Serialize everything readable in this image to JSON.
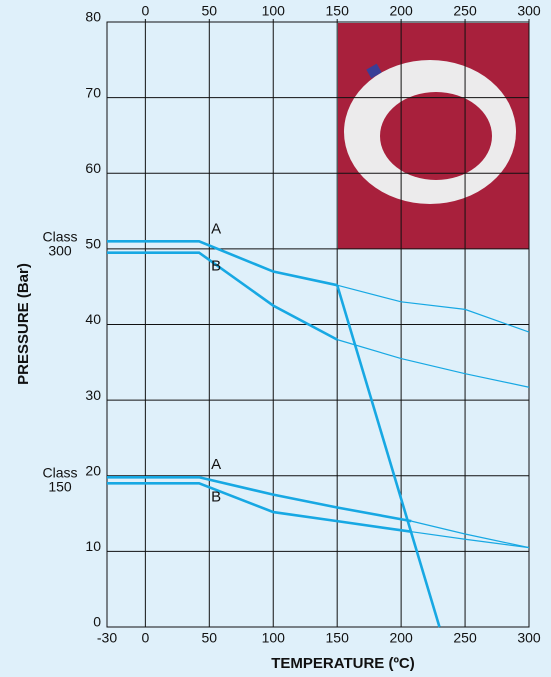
{
  "chart_data": {
    "type": "line",
    "x_label": "TEMPERATURE (ºC)",
    "y_label": "PRESSURE (Bar)",
    "xlim": [
      -30,
      300
    ],
    "ylim": [
      0,
      80
    ],
    "xticks": [
      -30,
      0,
      50,
      100,
      150,
      200,
      250,
      300
    ],
    "x2ticks": [
      0,
      50,
      100,
      150,
      200,
      250,
      300
    ],
    "yticks": [
      0,
      10,
      20,
      30,
      40,
      50,
      60,
      70,
      80
    ],
    "grid": true,
    "classes": [
      {
        "label": [
          "Class",
          "300"
        ],
        "series": [
          {
            "name": "A",
            "color": "#17a8e3",
            "style": "thick",
            "x": [
              -30,
              42,
              100,
              150
            ],
            "values": [
              51,
              51,
              47,
              45.2
            ]
          },
          {
            "color": "#17a8e3",
            "style": "thin",
            "x": [
              150,
              200,
              250,
              300
            ],
            "values": [
              45.2,
              43,
              42,
              39
            ]
          },
          {
            "name": "B",
            "color": "#17a8e3",
            "style": "thick",
            "x": [
              -30,
              42,
              100,
              150
            ],
            "values": [
              49.5,
              49.5,
              42.5,
              38
            ]
          },
          {
            "color": "#17a8e3",
            "style": "thin",
            "x": [
              150,
              200,
              250,
              300
            ],
            "values": [
              38,
              35.5,
              33.5,
              31.7
            ]
          },
          {
            "color": "#17a8e3",
            "style": "thick",
            "x": [
              150,
              230
            ],
            "values": [
              45.2,
              0
            ]
          }
        ]
      },
      {
        "label": [
          "Class",
          "150"
        ],
        "series": [
          {
            "name": "A",
            "color": "#17a8e3",
            "style": "thick",
            "x": [
              -30,
              42,
              100,
              150,
              208
            ],
            "values": [
              19.8,
              19.8,
              17.5,
              15.8,
              14
            ]
          },
          {
            "color": "#17a8e3",
            "style": "thin",
            "x": [
              208,
              250,
              300
            ],
            "values": [
              14,
              12.3,
              10.5
            ]
          },
          {
            "name": "B",
            "color": "#17a8e3",
            "style": "thick",
            "x": [
              -30,
              42,
              100,
              150,
              208
            ],
            "values": [
              19,
              19,
              15.2,
              14,
              12.6
            ]
          },
          {
            "color": "#17a8e3",
            "style": "thin",
            "x": [
              208,
              250,
              300
            ],
            "values": [
              12.6,
              11.6,
              10.5
            ]
          }
        ]
      }
    ]
  }
}
